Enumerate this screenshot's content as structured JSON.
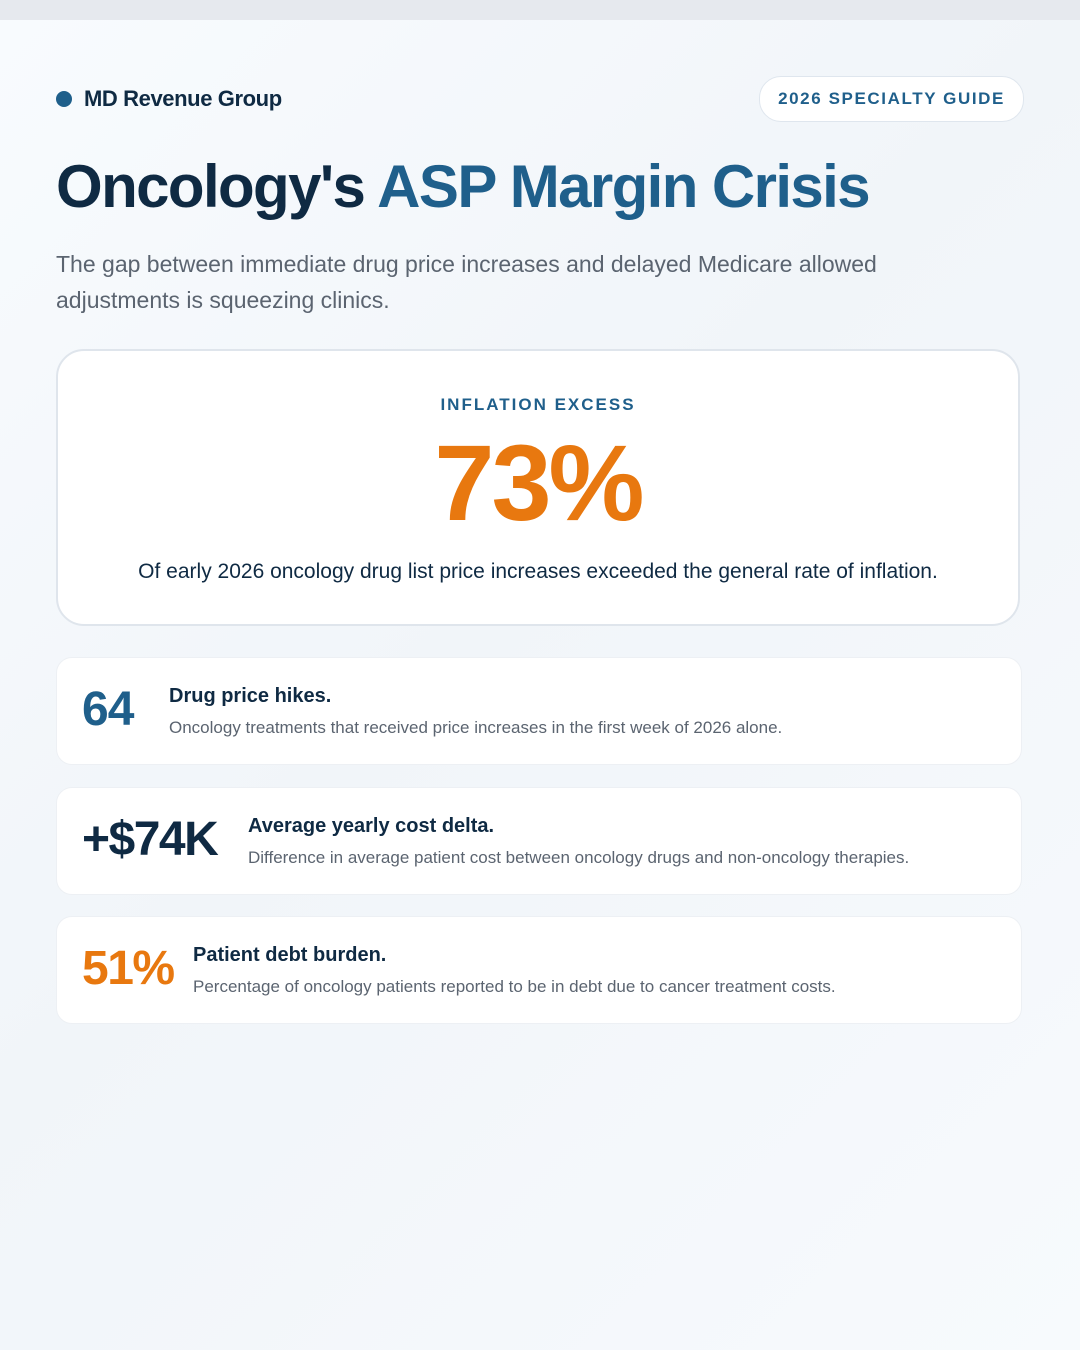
{
  "header": {
    "brand_name": "MD Revenue Group",
    "badge": "2026 SPECIALTY GUIDE"
  },
  "title": {
    "part1": "Oncology's",
    "part2": "ASP Margin Crisis"
  },
  "subtitle": "The gap between immediate drug price increases and delayed Medicare allowed adjustments is squeezing clinics.",
  "hero": {
    "label": "INFLATION EXCESS",
    "value": "73%",
    "caption": "Of early 2026 oncology drug list price increases exceeded the general rate of inflation."
  },
  "stats": [
    {
      "value": "64",
      "title": "Drug price hikes.",
      "description": "Oncology treatments that received price increases in the first week of 2026 alone."
    },
    {
      "value": "+$74K",
      "title": "Average yearly cost delta.",
      "description": "Difference in average patient cost between oncology drugs and non-oncology therapies."
    },
    {
      "value": "51%",
      "title": "Patient debt burden.",
      "description": "Percentage of oncology patients reported to be in debt due to cancer treatment costs."
    }
  ],
  "colors": {
    "navy": "#0f2a43",
    "blue": "#1f5f8b",
    "orange": "#e8780f",
    "muted_text": "#5b6470"
  }
}
